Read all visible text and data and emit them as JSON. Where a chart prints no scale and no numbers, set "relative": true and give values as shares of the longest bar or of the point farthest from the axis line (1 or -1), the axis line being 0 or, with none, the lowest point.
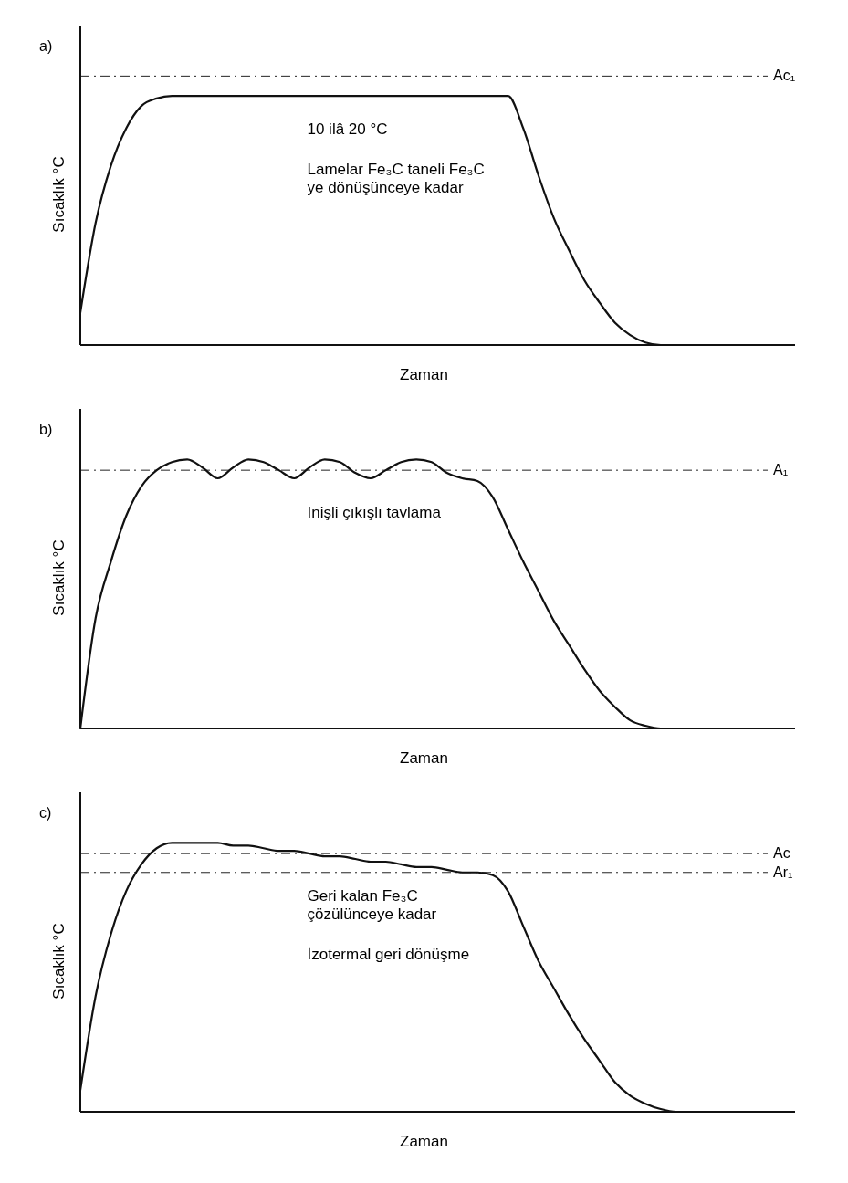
{
  "chart_data": [
    {
      "type": "line",
      "title": "a)",
      "xlabel": "Zaman",
      "ylabel": "Sıcaklık °C",
      "relative": true,
      "color": "#111111",
      "categories": [
        null,
        null,
        null,
        null,
        null,
        null,
        null,
        null,
        null,
        null,
        null,
        null,
        null,
        null,
        null,
        null,
        null,
        null,
        null,
        null,
        null,
        null,
        null,
        null,
        null,
        null,
        null,
        null,
        null,
        null,
        null,
        null,
        null,
        null,
        null,
        null,
        null,
        null,
        null,
        null,
        null
      ],
      "values": [
        0.13,
        0.49,
        0.72,
        0.87,
        0.96,
        0.99,
        1,
        1,
        1,
        1,
        1,
        1,
        1,
        1,
        1,
        1,
        1,
        1,
        1,
        1,
        1,
        1,
        1,
        1,
        1,
        1,
        1,
        1,
        1,
        0.87,
        0.68,
        0.51,
        0.38,
        0.26,
        0.17,
        0.09,
        0.04,
        0.01,
        0,
        0,
        0
      ],
      "ref_lines": [
        {
          "axis": "y",
          "value": 1.08,
          "label": "Ac₁",
          "line_style": "dashed"
        }
      ],
      "annotations": [
        "10 ilâ 20 °C",
        "Lamelar Fe₃C taneli Fe₃C ye dönüşünceye kadar"
      ]
    },
    {
      "type": "line",
      "title": "b)",
      "xlabel": "Zaman",
      "ylabel": "Sıcaklık °C",
      "relative": true,
      "color": "#111111",
      "categories": [
        null,
        null,
        null,
        null,
        null,
        null,
        null,
        null,
        null,
        null,
        null,
        null,
        null,
        null,
        null,
        null,
        null,
        null,
        null,
        null,
        null,
        null,
        null,
        null,
        null,
        null,
        null,
        null,
        null,
        null,
        null,
        null,
        null,
        null,
        null,
        null,
        null,
        null,
        null,
        null,
        null
      ],
      "values": [
        0,
        0.41,
        0.62,
        0.79,
        0.9,
        0.96,
        0.99,
        1,
        0.97,
        0.93,
        0.97,
        1,
        0.99,
        0.96,
        0.93,
        0.97,
        1,
        0.99,
        0.95,
        0.93,
        0.96,
        0.99,
        1,
        0.99,
        0.95,
        0.93,
        0.92,
        0.86,
        0.74,
        0.62,
        0.51,
        0.4,
        0.31,
        0.22,
        0.14,
        0.08,
        0.03,
        0.01,
        0,
        0,
        0
      ],
      "ref_lines": [
        {
          "axis": "y",
          "value": 0.96,
          "label": "A₁",
          "line_style": "dashed"
        }
      ],
      "annotations": [
        "Inişli  çıkışlı tavlama"
      ]
    },
    {
      "type": "line",
      "title": "c)",
      "xlabel": "Zaman",
      "ylabel": "Sıcaklık °C",
      "relative": true,
      "color": "#111111",
      "categories": [
        null,
        null,
        null,
        null,
        null,
        null,
        null,
        null,
        null,
        null,
        null,
        null,
        null,
        null,
        null,
        null,
        null,
        null,
        null,
        null,
        null,
        null,
        null,
        null,
        null,
        null,
        null,
        null,
        null,
        null,
        null,
        null,
        null,
        null,
        null,
        null,
        null,
        null,
        null,
        null,
        null
      ],
      "values": [
        0.08,
        0.43,
        0.66,
        0.82,
        0.92,
        0.98,
        1,
        1,
        1,
        1,
        0.99,
        0.99,
        0.98,
        0.97,
        0.97,
        0.96,
        0.95,
        0.95,
        0.94,
        0.93,
        0.93,
        0.92,
        0.91,
        0.91,
        0.9,
        0.89,
        0.89,
        0.88,
        0.82,
        0.69,
        0.56,
        0.46,
        0.36,
        0.27,
        0.19,
        0.11,
        0.06,
        0.03,
        0.01,
        0,
        0
      ],
      "ref_lines": [
        {
          "axis": "y",
          "value": 0.96,
          "label": "Ac",
          "line_style": "dashed"
        },
        {
          "axis": "y",
          "value": 0.89,
          "label": "Ar₁",
          "line_style": "dashed"
        }
      ],
      "annotations": [
        "Geri kalan Fe₃C çözülünceye kadar",
        "İzotermal geri dönüşme"
      ]
    }
  ]
}
